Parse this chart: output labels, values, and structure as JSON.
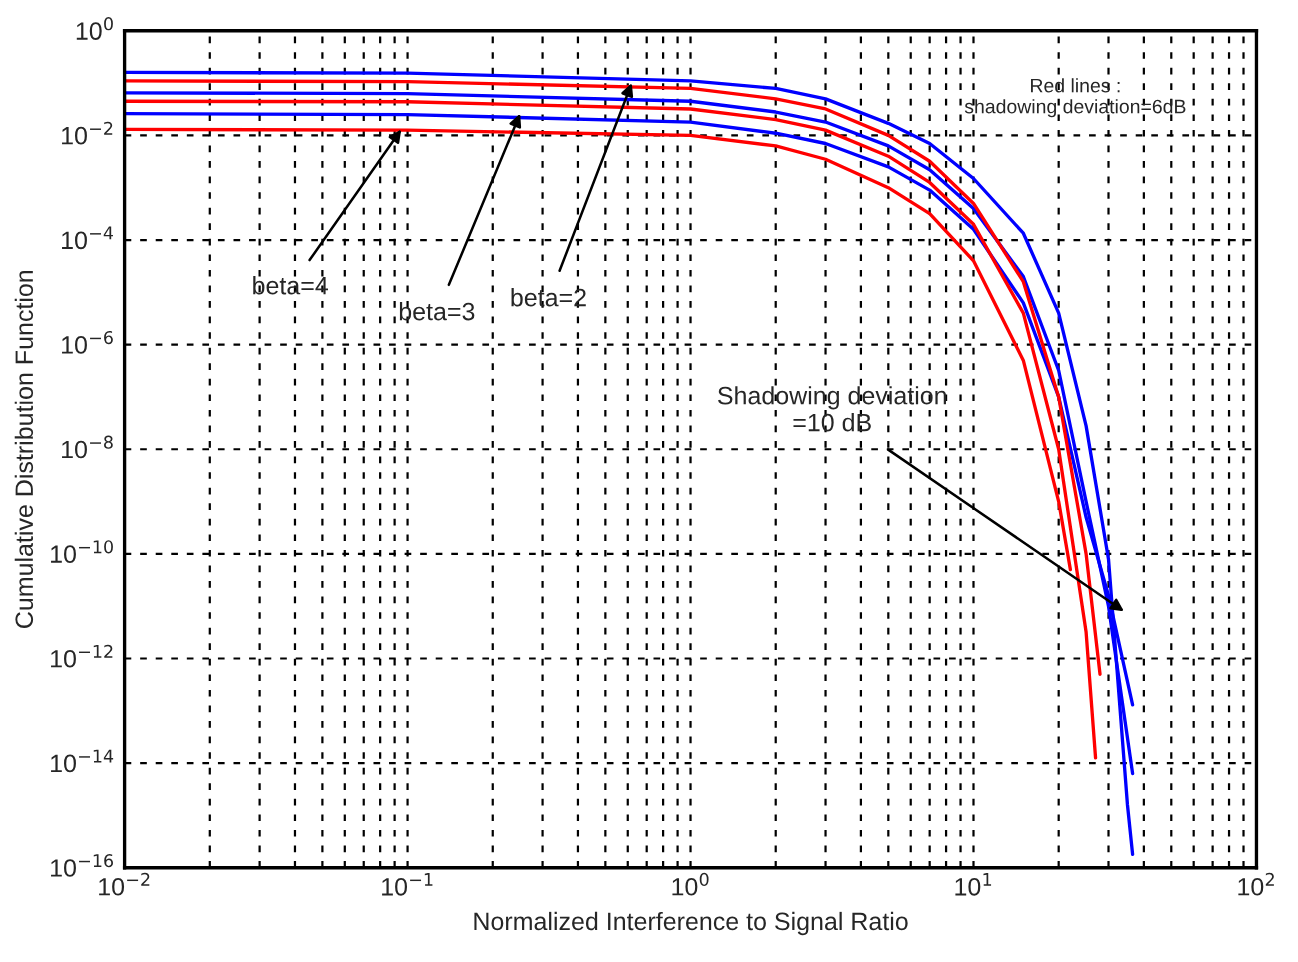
{
  "chart_data": {
    "type": "line",
    "xlabel": "Normalized Interference to Signal Ratio",
    "ylabel": "Cumulative Distribution Function",
    "log": "xy",
    "grid": true,
    "line_style": "solid",
    "xlim": [
      0.01,
      100
    ],
    "xticks": [
      {
        "value": 0.01,
        "label": "10$^{−2}$"
      },
      {
        "value": 0.1,
        "label": "10$^{−1}$"
      },
      {
        "value": 1,
        "label": "10$^{0}$"
      },
      {
        "value": 10,
        "label": "10$^{1}$"
      },
      {
        "value": 100,
        "label": "10$^{2}$"
      }
    ],
    "ylim": [
      1e-16,
      1
    ],
    "yticks": [
      {
        "value": 1,
        "label": "10$^{0}$"
      },
      {
        "value": 0.01,
        "label": "10$^{−2}$"
      },
      {
        "value": 0.0001,
        "label": "10$^{−4}$"
      },
      {
        "value": 1e-06,
        "label": "10$^{−6}$"
      },
      {
        "value": 1e-08,
        "label": "10$^{−8}$"
      },
      {
        "value": 1e-10,
        "label": "10$^{−10}$"
      },
      {
        "value": 1e-12,
        "label": "10$^{−12}$"
      },
      {
        "value": 1e-14,
        "label": "10$^{−14}$"
      },
      {
        "value": 1e-16,
        "label": "10$^{−16}$"
      }
    ],
    "series": [
      {
        "color": "#0000ff",
        "x": [
          0.01,
          0.1,
          1,
          2,
          3,
          5,
          7,
          10,
          15,
          20,
          25,
          30,
          35,
          36.5
        ],
        "values": [
          0.16,
          0.155,
          0.11,
          0.079,
          0.05,
          0.017,
          0.007,
          0.0015,
          0.000135,
          4e-06,
          2.8e-08,
          7.9e-11,
          1.6e-15,
          1.8e-16
        ]
      },
      {
        "color": "#0000ff",
        "x": [
          0.01,
          0.1,
          1,
          2,
          3,
          5,
          7,
          10,
          15,
          20,
          25,
          30,
          36.5
        ],
        "values": [
          0.065,
          0.063,
          0.045,
          0.028,
          0.018,
          0.0063,
          0.0022,
          0.0004,
          2e-05,
          3.2e-07,
          1e-09,
          1e-11,
          6.3e-15
        ]
      },
      {
        "color": "#0000ff",
        "x": [
          0.01,
          0.1,
          1,
          2,
          3,
          5,
          7,
          10,
          15,
          20,
          25,
          30,
          36.5
        ],
        "values": [
          0.026,
          0.025,
          0.018,
          0.011,
          0.007,
          0.0025,
          0.0009,
          0.00016,
          6.3e-06,
          1e-07,
          5e-10,
          1.6e-11,
          1.3e-13
        ]
      },
      {
        "color": "#ff0000",
        "x": [
          0.01,
          0.1,
          1,
          2,
          3,
          5,
          7,
          10,
          15,
          20,
          25,
          28
        ],
        "values": [
          0.11,
          0.107,
          0.079,
          0.05,
          0.032,
          0.01,
          0.0032,
          0.0005,
          1.6e-05,
          1e-07,
          1e-10,
          5e-13
        ]
      },
      {
        "color": "#ff0000",
        "x": [
          0.01,
          0.1,
          1,
          2,
          3,
          5,
          7,
          10,
          15,
          20,
          25,
          27
        ],
        "values": [
          0.045,
          0.044,
          0.032,
          0.02,
          0.0126,
          0.004,
          0.00126,
          0.0002,
          4e-06,
          1e-08,
          3.2e-12,
          1.26e-14
        ]
      },
      {
        "color": "#ff0000",
        "x": [
          0.01,
          0.1,
          1,
          2,
          3,
          5,
          7,
          10,
          15,
          20,
          22
        ],
        "values": [
          0.013,
          0.0126,
          0.01,
          0.0063,
          0.0035,
          0.001,
          0.00032,
          4e-05,
          5e-07,
          1e-09,
          5e-11
        ]
      }
    ],
    "annotations": [
      {
        "text": "beta=4",
        "x": 0.095,
        "y": 0.013
      },
      {
        "text": "beta=3",
        "x": 0.25,
        "y": 0.026
      },
      {
        "text": "beta=2",
        "x": 0.62,
        "y": 0.1
      },
      {
        "text": "Shadowing deviation\n=10 dB",
        "x": 34,
        "y": 8e-12
      },
      "Red lines :\nshadowing deviation=6dB"
    ]
  }
}
